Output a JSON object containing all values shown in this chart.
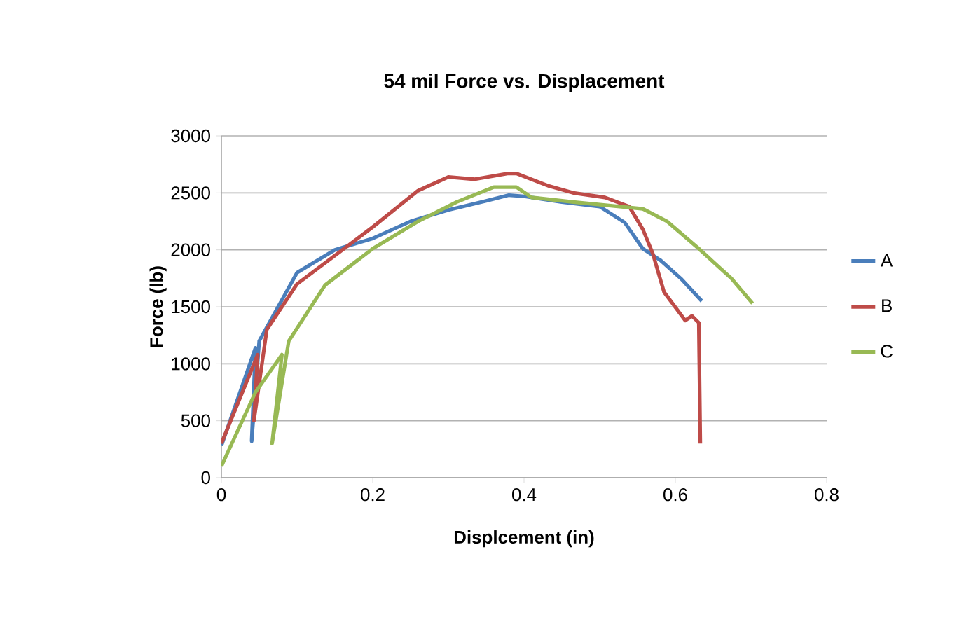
{
  "chart_data": {
    "type": "line",
    "title": "54 mil Force vs. Displacement",
    "xlabel": "Displcement (in)",
    "ylabel": "Force (lb)",
    "xlim": [
      0,
      0.8
    ],
    "xticks": [
      0,
      0.2,
      0.4,
      0.6,
      0.8
    ],
    "ylim": [
      0,
      3000
    ],
    "yticks": [
      0,
      500,
      1000,
      1500,
      2000,
      2500,
      3000
    ],
    "grid": "y",
    "legend": "right",
    "marker": "none",
    "line_style": "solid",
    "series": [
      {
        "name": "A",
        "color": "#4a7ebb",
        "x": [
          0,
          0.045,
          0.04,
          0.05,
          0.1,
          0.15,
          0.2,
          0.25,
          0.3,
          0.35,
          0.38,
          0.4,
          0.45,
          0.5,
          0.533,
          0.557,
          0.58,
          0.607,
          0.635
        ],
        "values": [
          280,
          1140,
          320,
          1200,
          1800,
          2000,
          2100,
          2250,
          2350,
          2430,
          2480,
          2470,
          2420,
          2380,
          2240,
          2010,
          1910,
          1750,
          1550
        ]
      },
      {
        "name": "B",
        "color": "#be4b48",
        "x": [
          0,
          0.048,
          0.043,
          0.06,
          0.1,
          0.15,
          0.2,
          0.26,
          0.3,
          0.335,
          0.378,
          0.39,
          0.433,
          0.465,
          0.507,
          0.539,
          0.557,
          0.57,
          0.585,
          0.613,
          0.622,
          0.631,
          0.633
        ],
        "values": [
          300,
          1080,
          500,
          1300,
          1700,
          1950,
          2200,
          2520,
          2640,
          2620,
          2670,
          2670,
          2560,
          2500,
          2460,
          2380,
          2180,
          1970,
          1630,
          1380,
          1420,
          1360,
          300
        ]
      },
      {
        "name": "C",
        "color": "#98b954",
        "x": [
          0,
          0.045,
          0.08,
          0.067,
          0.089,
          0.137,
          0.2,
          0.26,
          0.311,
          0.36,
          0.39,
          0.41,
          0.465,
          0.557,
          0.589,
          0.631,
          0.674,
          0.702
        ],
        "values": [
          100,
          750,
          1080,
          300,
          1200,
          1690,
          2010,
          2250,
          2420,
          2550,
          2550,
          2460,
          2420,
          2360,
          2250,
          2010,
          1750,
          1530
        ]
      }
    ]
  }
}
